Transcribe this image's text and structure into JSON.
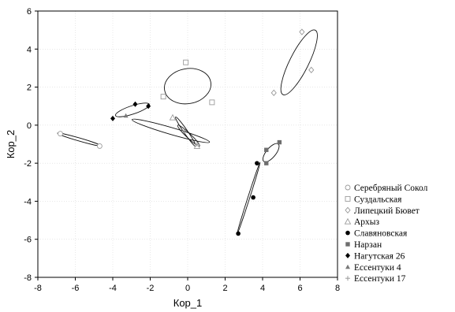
{
  "chart_data": {
    "type": "scatter",
    "title": "",
    "xlabel": "Кор_1",
    "ylabel": "Кор_2",
    "xlim": [
      -8,
      8
    ],
    "ylim": [
      -8,
      6
    ],
    "xticks": [
      "-8",
      "-6",
      "-4",
      "-2",
      "0",
      "2",
      "4",
      "6",
      "8"
    ],
    "yticks": [
      "6",
      "4",
      "2",
      "0",
      "-2",
      "-4",
      "-6",
      "-8"
    ],
    "grid": true,
    "legend_position": "right",
    "series": [
      {
        "name": "Серебряный Сокол",
        "marker": "open-circle",
        "color": "#9a9a9a",
        "points": [
          [
            -6.8,
            -0.45
          ],
          [
            -4.7,
            -1.1
          ]
        ],
        "ellipse": {
          "cx": -5.8,
          "cy": -0.75,
          "rx": 1.2,
          "ry": 0.08,
          "angle": -16
        }
      },
      {
        "name": "Суздальская",
        "marker": "open-square",
        "color": "#9a9a9a",
        "points": [
          [
            -0.1,
            3.3
          ],
          [
            -1.3,
            1.5
          ],
          [
            1.3,
            1.2
          ]
        ],
        "ellipse": {
          "cx": 0.0,
          "cy": 2.05,
          "rx": 1.25,
          "ry": 0.92,
          "angle": 10
        }
      },
      {
        "name": "Липецкий Бювет",
        "marker": "open-diamond",
        "color": "#9a9a9a",
        "points": [
          [
            6.1,
            4.9
          ],
          [
            4.6,
            1.7
          ],
          [
            6.6,
            2.9
          ]
        ],
        "ellipse": {
          "cx": 5.95,
          "cy": 3.3,
          "rx": 1.9,
          "ry": 0.5,
          "angle": 63
        }
      },
      {
        "name": "Архыз",
        "marker": "open-triangle",
        "color": "#9a9a9a",
        "points": [
          [
            -0.8,
            0.4
          ],
          [
            0.5,
            -1.1
          ]
        ],
        "ellipse": {
          "cx": -0.1,
          "cy": -0.35,
          "rx": 0.95,
          "ry": 0.1,
          "angle": -55
        }
      },
      {
        "name": "Славяновская",
        "marker": "filled-circle",
        "color": "#000000",
        "points": [
          [
            2.7,
            -5.7
          ],
          [
            3.5,
            -3.8
          ],
          [
            3.7,
            -2.0
          ]
        ],
        "ellipse": {
          "cx": 3.25,
          "cy": -3.85,
          "rx": 2.0,
          "ry": 0.04,
          "angle": 72
        }
      },
      {
        "name": "Нарзан",
        "marker": "filled-square",
        "color": "#6e6e6e",
        "points": [
          [
            4.2,
            -1.3
          ],
          [
            4.9,
            -0.9
          ],
          [
            4.2,
            -2.0
          ]
        ],
        "ellipse": {
          "cx": 4.45,
          "cy": -1.45,
          "rx": 0.6,
          "ry": 0.25,
          "angle": 50
        }
      },
      {
        "name": "Нагутская 26",
        "marker": "filled-plus",
        "color": "#000000",
        "points": [
          [
            -2.8,
            1.1
          ],
          [
            -4.0,
            0.35
          ],
          [
            -2.1,
            1.0
          ]
        ],
        "ellipse": {
          "cx": -2.95,
          "cy": 0.8,
          "rx": 0.95,
          "ry": 0.22,
          "angle": 18
        }
      },
      {
        "name": "Ессентуки 4",
        "marker": "filled-triangle",
        "color": "#7a7a7a",
        "points": [
          [
            -3.3,
            0.5
          ]
        ],
        "ellipse": {
          "cx": -0.9,
          "cy": -0.3,
          "rx": 2.15,
          "ry": 0.18,
          "angle": -16
        }
      },
      {
        "name": "Ессентуки 17",
        "marker": "plus",
        "color": "#9a9a9a",
        "points": [
          [
            -0.2,
            -0.3
          ],
          [
            0.5,
            -1.0
          ]
        ],
        "ellipse": {
          "cx": 0.05,
          "cy": -0.55,
          "rx": 0.8,
          "ry": 0.12,
          "angle": -43
        }
      }
    ]
  }
}
